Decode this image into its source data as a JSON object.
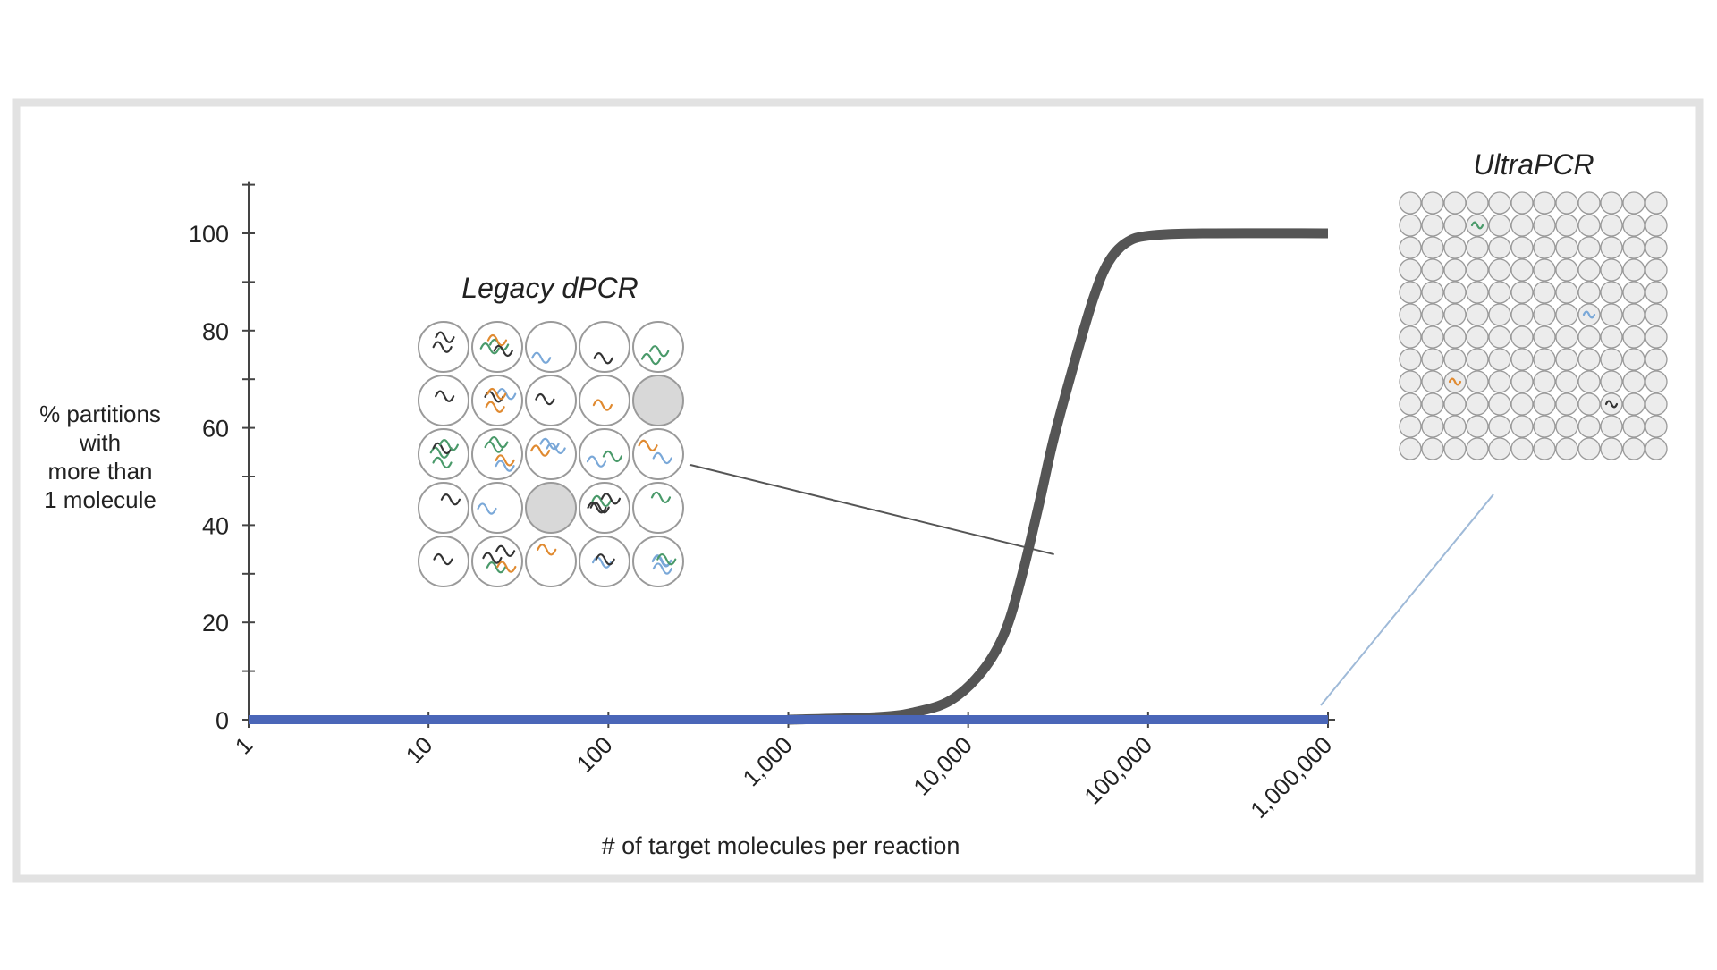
{
  "chart_data": {
    "type": "line",
    "xscale": "log",
    "xlim": [
      1,
      1000000
    ],
    "ylim": [
      0,
      110
    ],
    "xticks": [
      1,
      10,
      100,
      1000,
      10000,
      100000,
      1000000
    ],
    "xtick_labels": [
      "1",
      "10",
      "100",
      "1,000",
      "10,000",
      "100,000",
      "1,000,000"
    ],
    "yticks": [
      0,
      20,
      40,
      60,
      80,
      100
    ],
    "ytick_labels": [
      "0",
      "20",
      "40",
      "60",
      "80",
      "100"
    ],
    "xlabel": "# of target molecules per reaction",
    "ylabel": [
      "% partitions",
      "with",
      "more than",
      "1 molecule"
    ],
    "grid": false,
    "series": [
      {
        "name": "Legacy dPCR",
        "color": "#555555",
        "points": [
          [
            1000,
            0
          ],
          [
            3000,
            0.5
          ],
          [
            5000,
            1.5
          ],
          [
            8000,
            4
          ],
          [
            12000,
            10
          ],
          [
            16000,
            18
          ],
          [
            20000,
            30
          ],
          [
            25000,
            45
          ],
          [
            30000,
            58
          ],
          [
            40000,
            75
          ],
          [
            50000,
            87
          ],
          [
            60000,
            94
          ],
          [
            75000,
            98
          ],
          [
            100000,
            99.5
          ],
          [
            200000,
            100
          ],
          [
            1000000,
            100
          ]
        ]
      },
      {
        "name": "UltraPCR",
        "color": "#4a66b8",
        "points": [
          [
            1,
            0
          ],
          [
            10,
            0
          ],
          [
            100,
            0
          ],
          [
            1000,
            0
          ],
          [
            10000,
            0
          ],
          [
            100000,
            0
          ],
          [
            1000000,
            0
          ]
        ]
      }
    ],
    "annotations": [
      {
        "label": "Legacy dPCR",
        "grid": "5x5",
        "empty_cells": 2,
        "points_to_x": 30000
      },
      {
        "label": "UltraPCR",
        "grid": "12x12",
        "molecules": 4,
        "points_to_x": 1000000
      }
    ]
  },
  "colors": {
    "frame_border": "#e2e2e2",
    "axis": "#444444",
    "curve": "#555555",
    "baseline": "#4a66b8",
    "circle_fill": "#ececec",
    "circle_stroke": "#9a9a9a",
    "molecule_colors": [
      "#333333",
      "#4a9a6a",
      "#e08a30",
      "#7aa8d8"
    ]
  }
}
